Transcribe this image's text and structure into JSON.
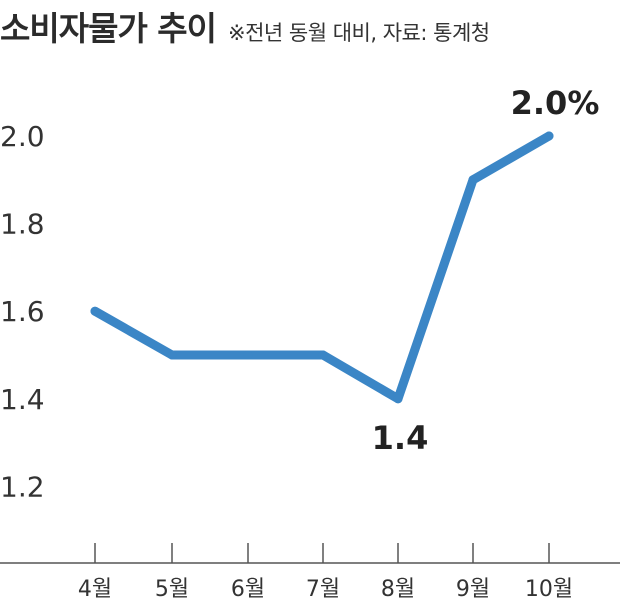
{
  "title": "소비자물가 추이",
  "note": "※전년 동월 대비, 자료: 통계청",
  "colors": {
    "line": "#3b86c6",
    "axis": "#555555",
    "text": "#333333"
  },
  "chart_data": {
    "type": "line",
    "categories": [
      "4월",
      "5월",
      "6월",
      "7월",
      "8월",
      "9월",
      "10월"
    ],
    "series": [
      {
        "values": [
          1.6,
          1.5,
          1.5,
          1.5,
          1.4,
          1.9,
          2.0
        ]
      }
    ],
    "yticks": [
      "1.2",
      "1.4",
      "1.6",
      "1.8",
      "2.0"
    ],
    "ylim": [
      1.1,
      2.1
    ],
    "data_labels": [
      {
        "index": 4,
        "text": "1.4"
      },
      {
        "index": 6,
        "text": "2.0%"
      }
    ],
    "grid": false
  }
}
